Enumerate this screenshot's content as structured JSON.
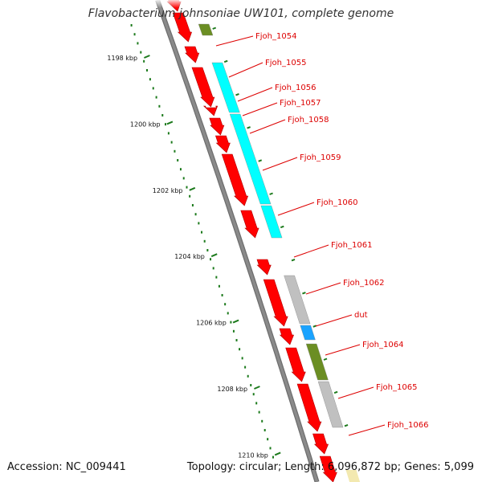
{
  "title": "Flavobacterium johnsoniae UW101, complete genome",
  "footer": {
    "accession": "Accession: NC_009441",
    "summary": "Topology: circular; Length: 6,096,872 bp; Genes: 5,099"
  },
  "colors": {
    "backbone": "#8a8a8a",
    "scale": "#1c7a1c",
    "cds": "#ff0000",
    "label": "#dd0000",
    "cog_cyan": "#00ffff",
    "cog_gray": "#c0c0c0",
    "cog_olive": "#6b8e23",
    "cog_blue": "#1aa3ff",
    "leader": "#dd0000"
  },
  "scale": {
    "ticks": [
      {
        "kbp": 1198,
        "label": "1198 kbp"
      },
      {
        "kbp": 1200,
        "label": "1200 kbp"
      },
      {
        "kbp": 1202,
        "label": "1202 kbp"
      },
      {
        "kbp": 1204,
        "label": "1204 kbp"
      },
      {
        "kbp": 1206,
        "label": "1206 kbp"
      },
      {
        "kbp": 1208,
        "label": "1208 kbp"
      },
      {
        "kbp": 1210,
        "label": "1210 kbp"
      }
    ]
  },
  "genes": [
    {
      "name": "Fjoh_1054"
    },
    {
      "name": "Fjoh_1055"
    },
    {
      "name": "Fjoh_1056"
    },
    {
      "name": "Fjoh_1057"
    },
    {
      "name": "Fjoh_1058"
    },
    {
      "name": "Fjoh_1059"
    },
    {
      "name": "Fjoh_1060"
    },
    {
      "name": "Fjoh_1061"
    },
    {
      "name": "Fjoh_1062"
    },
    {
      "name": "dut"
    },
    {
      "name": "Fjoh_1064"
    },
    {
      "name": "Fjoh_1065"
    },
    {
      "name": "Fjoh_1066"
    }
  ]
}
